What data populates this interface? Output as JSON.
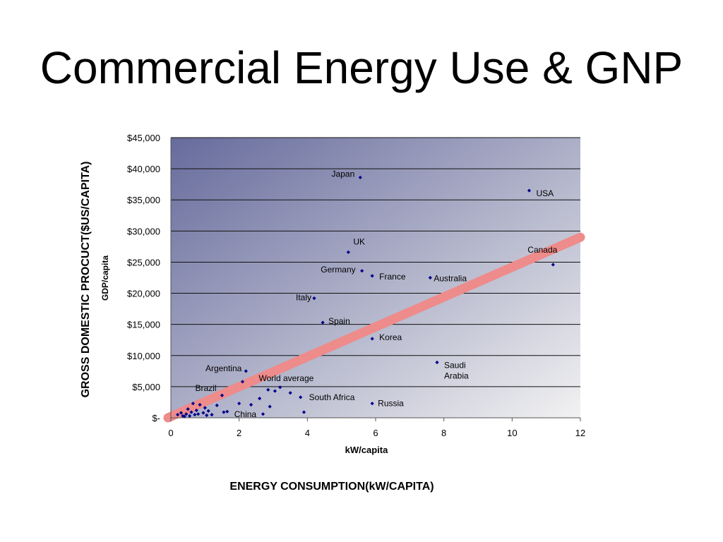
{
  "slide": {
    "title": "Commercial Energy Use & GNP",
    "outer_y_label": "GROSS DOMESTIC PROCUCT($US/CAPITA)",
    "outer_x_label": "ENERGY CONSUMPTION(kW/CAPITA)"
  },
  "chart_data": {
    "type": "scatter",
    "xlabel": "kW/capita",
    "ylabel": "GDP/capita",
    "xlim": [
      0,
      12
    ],
    "ylim": [
      0,
      45000
    ],
    "x_ticks": [
      "0",
      "2",
      "4",
      "6",
      "8",
      "10",
      "12"
    ],
    "y_ticks": [
      "$-",
      "$5,000",
      "$10,000",
      "$15,000",
      "$20,000",
      "$25,000",
      "$30,000",
      "$35,000",
      "$40,000",
      "$45,000"
    ],
    "grid": true,
    "background": {
      "gradient_from": "#666b9c",
      "gradient_to": "#f2f2f2"
    },
    "marker_color": "#00008b",
    "trendline": {
      "color": "#ee8b8b",
      "from": [
        0,
        0
      ],
      "to": [
        12,
        29000
      ]
    },
    "labeled_points": [
      {
        "label": "Japan",
        "x": 5.55,
        "y": 38600
      },
      {
        "label": "USA",
        "x": 10.5,
        "y": 36500
      },
      {
        "label": "UK",
        "x": 5.2,
        "y": 26600
      },
      {
        "label": "Canada",
        "x": 11.2,
        "y": 24600
      },
      {
        "label": "Germany",
        "x": 5.6,
        "y": 23600
      },
      {
        "label": "France",
        "x": 5.9,
        "y": 22800
      },
      {
        "label": "Australia",
        "x": 7.6,
        "y": 22500
      },
      {
        "label": "Italy",
        "x": 4.2,
        "y": 19200
      },
      {
        "label": "Spain",
        "x": 4.45,
        "y": 15300
      },
      {
        "label": "Korea",
        "x": 5.9,
        "y": 12700
      },
      {
        "label": "Saudi Arabia",
        "x": 7.8,
        "y": 8900
      },
      {
        "label": "Argentina",
        "x": 2.2,
        "y": 7500
      },
      {
        "label": "World average",
        "x": 2.1,
        "y": 5800
      },
      {
        "label": "Brazil",
        "x": 1.5,
        "y": 3600
      },
      {
        "label": "South Africa",
        "x": 3.8,
        "y": 3300
      },
      {
        "label": "Russia",
        "x": 5.9,
        "y": 2300
      },
      {
        "label": "China",
        "x": 1.65,
        "y": 1000
      }
    ],
    "points": [
      {
        "x": 0.2,
        "y": 500
      },
      {
        "x": 0.3,
        "y": 800
      },
      {
        "x": 0.35,
        "y": 300
      },
      {
        "x": 0.4,
        "y": 200
      },
      {
        "x": 0.45,
        "y": 600
      },
      {
        "x": 0.5,
        "y": 1400
      },
      {
        "x": 0.55,
        "y": 300
      },
      {
        "x": 0.6,
        "y": 900
      },
      {
        "x": 0.65,
        "y": 2300
      },
      {
        "x": 0.7,
        "y": 500
      },
      {
        "x": 0.75,
        "y": 1200
      },
      {
        "x": 0.8,
        "y": 600
      },
      {
        "x": 0.85,
        "y": 2100
      },
      {
        "x": 0.95,
        "y": 800
      },
      {
        "x": 1.0,
        "y": 1600
      },
      {
        "x": 1.05,
        "y": 400
      },
      {
        "x": 1.1,
        "y": 1100
      },
      {
        "x": 1.2,
        "y": 500
      },
      {
        "x": 1.35,
        "y": 2000
      },
      {
        "x": 1.55,
        "y": 900
      },
      {
        "x": 2.0,
        "y": 2300
      },
      {
        "x": 2.35,
        "y": 2100
      },
      {
        "x": 2.6,
        "y": 3100
      },
      {
        "x": 2.7,
        "y": 600
      },
      {
        "x": 2.85,
        "y": 4500
      },
      {
        "x": 2.9,
        "y": 1800
      },
      {
        "x": 3.05,
        "y": 4300
      },
      {
        "x": 3.2,
        "y": 4900
      },
      {
        "x": 3.5,
        "y": 4000
      },
      {
        "x": 3.9,
        "y": 900
      }
    ]
  }
}
